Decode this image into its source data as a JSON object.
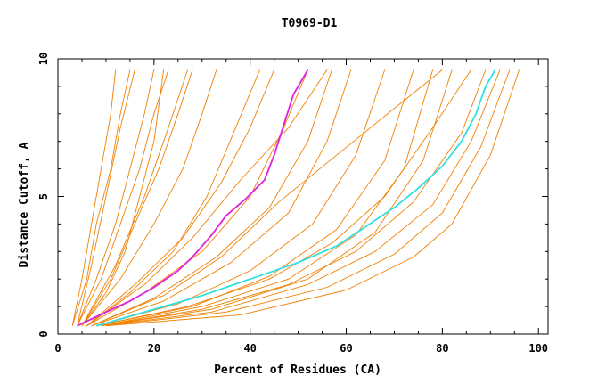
{
  "chart_data": {
    "type": "line",
    "title": "T0969-D1",
    "xlabel": "Percent of Residues (CA)",
    "ylabel": "Distance Cutoff, A",
    "xlim": [
      0,
      102
    ],
    "ylim": [
      0,
      10
    ],
    "x_ticks": [
      "0",
      "20",
      "40",
      "60",
      "80",
      "100"
    ],
    "y_ticks": [
      "0",
      "5",
      "10"
    ],
    "grid": false,
    "legend": "none",
    "colors": {
      "background": "#ffffff",
      "axis": "#000000",
      "default_series": "#f08000",
      "magenta_series": "#e020e0",
      "cyan_series": "#30e0e0"
    },
    "highlight_series": [
      {
        "color": "#e020e0",
        "points": [
          [
            4,
            0.3
          ],
          [
            10,
            0.8
          ],
          [
            15,
            1.2
          ],
          [
            20,
            1.7
          ],
          [
            25,
            2.3
          ],
          [
            28,
            2.8
          ],
          [
            32,
            3.6
          ],
          [
            35,
            4.3
          ],
          [
            39,
            4.9
          ],
          [
            43,
            5.6
          ],
          [
            45,
            6.5
          ],
          [
            47,
            7.6
          ],
          [
            49,
            8.7
          ],
          [
            52,
            9.6
          ]
        ]
      },
      {
        "color": "#30e0e0",
        "points": [
          [
            8,
            0.3
          ],
          [
            20,
            0.9
          ],
          [
            30,
            1.4
          ],
          [
            40,
            2.0
          ],
          [
            50,
            2.6
          ],
          [
            58,
            3.2
          ],
          [
            64,
            3.9
          ],
          [
            70,
            4.6
          ],
          [
            75,
            5.3
          ],
          [
            80,
            6.1
          ],
          [
            84,
            7.0
          ],
          [
            87,
            8.0
          ],
          [
            89,
            9.0
          ],
          [
            91,
            9.6
          ]
        ]
      }
    ],
    "orange_series": [
      [
        [
          3,
          0.3
        ],
        [
          5,
          2
        ],
        [
          7,
          4
        ],
        [
          9,
          6
        ],
        [
          11,
          8
        ],
        [
          12,
          9.6
        ]
      ],
      [
        [
          3,
          0.3
        ],
        [
          6,
          2
        ],
        [
          8,
          4
        ],
        [
          11,
          6
        ],
        [
          13,
          8
        ],
        [
          15,
          9.6
        ]
      ],
      [
        [
          4,
          0.3
        ],
        [
          7,
          2.5
        ],
        [
          10,
          5
        ],
        [
          13,
          7.5
        ],
        [
          16,
          9.6
        ]
      ],
      [
        [
          4,
          0.3
        ],
        [
          8,
          2
        ],
        [
          12,
          4
        ],
        [
          15,
          6
        ],
        [
          18,
          8
        ],
        [
          20,
          9.6
        ]
      ],
      [
        [
          4,
          0.3
        ],
        [
          9,
          2
        ],
        [
          13,
          4
        ],
        [
          17,
          6
        ],
        [
          20,
          8
        ],
        [
          23,
          9.6
        ]
      ],
      [
        [
          5,
          0.3
        ],
        [
          11,
          2
        ],
        [
          16,
          4
        ],
        [
          21,
          6
        ],
        [
          25,
          8
        ],
        [
          28,
          9.6
        ]
      ],
      [
        [
          5,
          0.3
        ],
        [
          12,
          2.5
        ],
        [
          18,
          5
        ],
        [
          23,
          7.5
        ],
        [
          27,
          9.6
        ]
      ],
      [
        [
          5,
          0.3
        ],
        [
          13,
          2
        ],
        [
          20,
          4
        ],
        [
          26,
          6
        ],
        [
          30,
          8
        ],
        [
          33,
          9.6
        ]
      ],
      [
        [
          6,
          0.3
        ],
        [
          15,
          1.5
        ],
        [
          24,
          3
        ],
        [
          31,
          5
        ],
        [
          37,
          7.5
        ],
        [
          42,
          9.6
        ]
      ],
      [
        [
          6,
          0.3
        ],
        [
          16,
          1.8
        ],
        [
          26,
          3.5
        ],
        [
          34,
          5.5
        ],
        [
          40,
          7.5
        ],
        [
          45,
          9.6
        ]
      ],
      [
        [
          6,
          0.3
        ],
        [
          18,
          1.5
        ],
        [
          30,
          3
        ],
        [
          40,
          5
        ],
        [
          47,
          7.5
        ],
        [
          52,
          9.6
        ]
      ],
      [
        [
          7,
          0.3
        ],
        [
          20,
          1.3
        ],
        [
          33,
          2.8
        ],
        [
          44,
          4.6
        ],
        [
          52,
          7
        ],
        [
          57,
          9.6
        ]
      ],
      [
        [
          7,
          0.3
        ],
        [
          22,
          1.2
        ],
        [
          36,
          2.6
        ],
        [
          48,
          4.4
        ],
        [
          56,
          7
        ],
        [
          61,
          9.6
        ]
      ],
      [
        [
          8,
          0.3
        ],
        [
          25,
          1.1
        ],
        [
          40,
          2.3
        ],
        [
          53,
          4
        ],
        [
          62,
          6.5
        ],
        [
          68,
          9.6
        ]
      ],
      [
        [
          8,
          0.3
        ],
        [
          28,
          1
        ],
        [
          44,
          2.1
        ],
        [
          58,
          3.8
        ],
        [
          68,
          6.3
        ],
        [
          74,
          9.6
        ]
      ],
      [
        [
          9,
          0.3
        ],
        [
          30,
          1
        ],
        [
          48,
          2
        ],
        [
          62,
          3.6
        ],
        [
          72,
          6
        ],
        [
          78,
          9.6
        ]
      ],
      [
        [
          9,
          0.3
        ],
        [
          32,
          0.9
        ],
        [
          52,
          2
        ],
        [
          66,
          3.7
        ],
        [
          76,
          6.3
        ],
        [
          82,
          9.6
        ]
      ],
      [
        [
          8,
          0.3
        ],
        [
          27,
          1
        ],
        [
          44,
          2
        ],
        [
          57,
          3.3
        ],
        [
          68,
          5
        ],
        [
          78,
          7.5
        ],
        [
          86,
          9.6
        ]
      ],
      [
        [
          9,
          0.3
        ],
        [
          30,
          0.9
        ],
        [
          48,
          1.8
        ],
        [
          62,
          3
        ],
        [
          74,
          4.8
        ],
        [
          84,
          7.3
        ],
        [
          89,
          9.6
        ]
      ],
      [
        [
          9,
          0.3
        ],
        [
          32,
          0.8
        ],
        [
          52,
          1.8
        ],
        [
          66,
          3
        ],
        [
          78,
          4.7
        ],
        [
          86,
          7
        ],
        [
          92,
          9.6
        ]
      ],
      [
        [
          10,
          0.3
        ],
        [
          35,
          0.8
        ],
        [
          56,
          1.7
        ],
        [
          70,
          2.9
        ],
        [
          80,
          4.4
        ],
        [
          88,
          6.8
        ],
        [
          94,
          9.6
        ]
      ],
      [
        [
          10,
          0.3
        ],
        [
          38,
          0.7
        ],
        [
          60,
          1.6
        ],
        [
          74,
          2.8
        ],
        [
          82,
          4
        ],
        [
          90,
          6.5
        ],
        [
          96,
          9.6
        ]
      ],
      [
        [
          7,
          0.3
        ],
        [
          22,
          1.4
        ],
        [
          34,
          2.8
        ],
        [
          46,
          4.8
        ],
        [
          58,
          6.5
        ],
        [
          70,
          8.2
        ],
        [
          80,
          9.6
        ]
      ],
      [
        [
          6,
          0.3
        ],
        [
          18,
          1.8
        ],
        [
          28,
          3.5
        ],
        [
          38,
          5.6
        ],
        [
          48,
          7.5
        ],
        [
          56,
          9.6
        ]
      ],
      [
        [
          5,
          0.3
        ],
        [
          10,
          1.5
        ],
        [
          14,
          3
        ],
        [
          17,
          5
        ],
        [
          20,
          7
        ],
        [
          22,
          9.6
        ]
      ]
    ]
  }
}
